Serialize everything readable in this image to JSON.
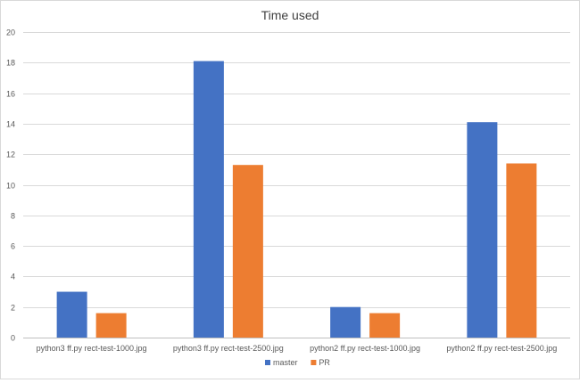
{
  "chart_data": {
    "type": "bar",
    "title": "Time used",
    "xlabel": "",
    "ylabel": "",
    "categories": [
      "python3 ff.py rect-test-1000.jpg",
      "python3 ff.py rect-test-2500.jpg",
      "python2 ff.py rect-test-1000.jpg",
      "python2 ff.py rect-test-2500.jpg"
    ],
    "series": [
      {
        "name": "master",
        "color": "#4472C4",
        "values": [
          3.0,
          18.1,
          2.0,
          14.1
        ]
      },
      {
        "name": "PR",
        "color": "#ED7D31",
        "values": [
          1.6,
          11.3,
          1.6,
          11.4
        ]
      }
    ],
    "ylim": [
      0,
      20
    ],
    "yticks": [
      0,
      2,
      4,
      6,
      8,
      10,
      12,
      14,
      16,
      18,
      20
    ],
    "grid": true,
    "legend": "bottom"
  }
}
